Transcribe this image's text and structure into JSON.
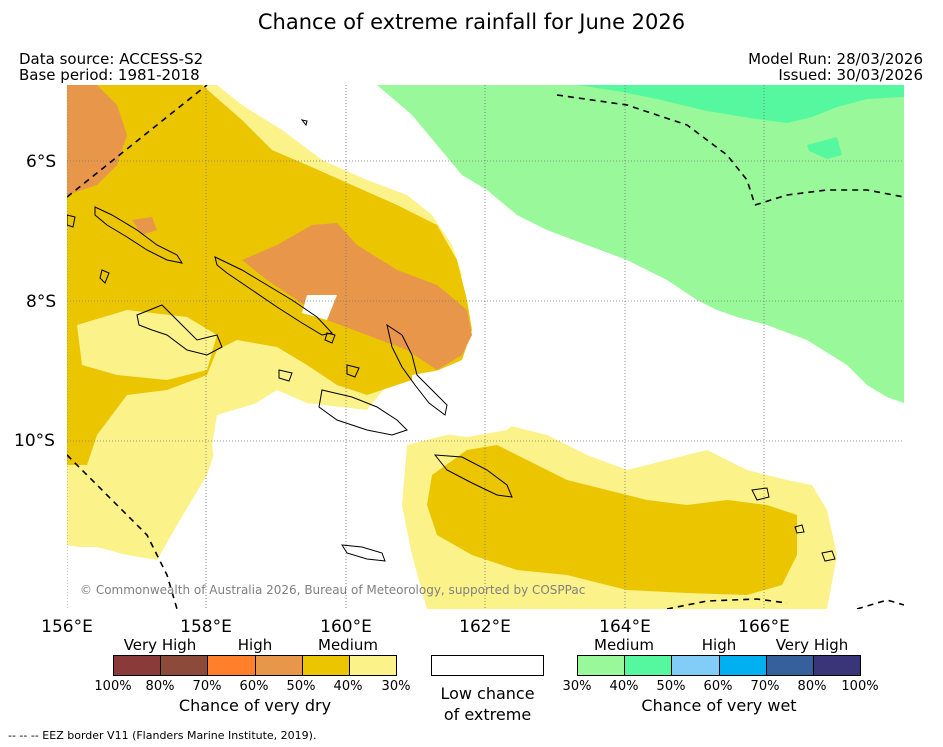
{
  "title": "Chance of extreme rainfall for June 2026",
  "meta": {
    "data_source": "Data source: ACCESS-S2",
    "base_period": "Base period: 1981-2018",
    "model_run": "Model Run: 28/03/2026",
    "issued": "Issued: 30/03/2026"
  },
  "map": {
    "lat_labels": [
      "6°S",
      "8°S",
      "10°S"
    ],
    "lon_labels": [
      "156°E",
      "158°E",
      "160°E",
      "162°E",
      "164°E",
      "166°E"
    ],
    "credit": "© Commonwealth of Australia 2026, Bureau of Meteorology, supported by COSPPac"
  },
  "legend": {
    "dry": {
      "categories": [
        "Very High",
        "High",
        "Medium"
      ],
      "percent_ticks": [
        "100%",
        "80%",
        "70%",
        "60%",
        "50%",
        "40%",
        "30%"
      ],
      "colors": [
        "#8b3a3a",
        "#8b4a3a",
        "#ff7f2a",
        "#e8964a",
        "#ebc500",
        "#fbf28a"
      ],
      "caption": "Chance of very dry"
    },
    "low": {
      "caption_line1": "Low chance",
      "caption_line2": "of extreme",
      "color": "#ffffff"
    },
    "wet": {
      "categories": [
        "Medium",
        "High",
        "Very High"
      ],
      "percent_ticks": [
        "30%",
        "40%",
        "50%",
        "60%",
        "70%",
        "80%",
        "100%"
      ],
      "colors": [
        "#99f899",
        "#55f89e",
        "#82cdf8",
        "#00b0f0",
        "#36609c",
        "#3a3478"
      ],
      "caption": "Chance of very wet"
    }
  },
  "footer": "-- -- -- EEZ border V11 (Flanders Marine Institute, 2019)."
}
